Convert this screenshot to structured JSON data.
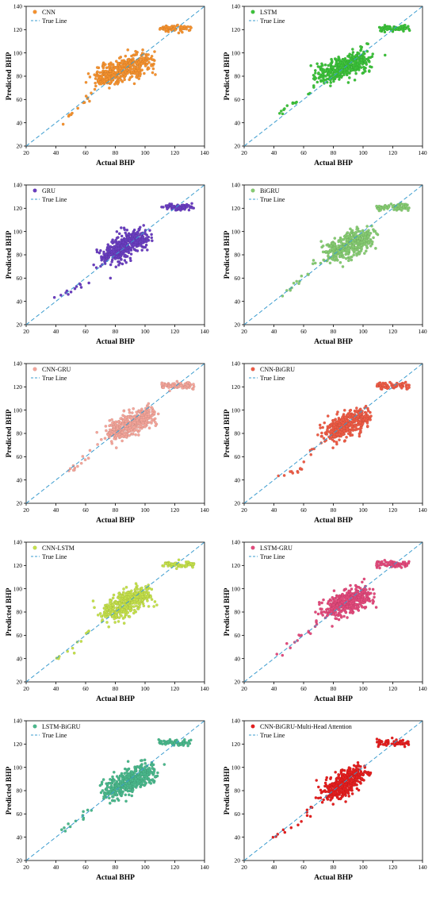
{
  "chart_data": [
    {
      "type": "scatter",
      "xlabel": "Actual BHP",
      "ylabel": "Predicted BHP",
      "xlim": [
        20,
        140
      ],
      "ylim": [
        20,
        140
      ],
      "xticks": [
        20,
        40,
        60,
        80,
        100,
        120,
        140
      ],
      "yticks": [
        20,
        40,
        60,
        80,
        100,
        120,
        140
      ],
      "grid": false,
      "legend": "top-left",
      "series": [
        {
          "name": "CNN",
          "color": "#f5922f",
          "clusters": [
            [
              45,
              40
            ],
            [
              55,
              52
            ],
            [
              63,
              62
            ],
            [
              70,
              78
            ],
            [
              85,
              85
            ],
            [
              100,
              93
            ],
            [
              120,
              121
            ]
          ]
        },
        {
          "name": "True Line",
          "line": true,
          "color": "#3b9ccf"
        }
      ]
    },
    {
      "type": "scatter",
      "xlabel": "Actual BHP",
      "ylabel": "Predicted BHP",
      "xlim": [
        20,
        140
      ],
      "ylim": [
        20,
        140
      ],
      "xticks": [
        20,
        40,
        60,
        80,
        100,
        120,
        140
      ],
      "yticks": [
        20,
        40,
        60,
        80,
        100,
        120,
        140
      ],
      "grid": false,
      "legend": "top-left",
      "series": [
        {
          "name": "LSTM",
          "color": "#3cc23a",
          "clusters": [
            [
              40,
              43
            ],
            [
              50,
              56
            ],
            [
              60,
              60
            ],
            [
              72,
              80
            ],
            [
              88,
              88
            ],
            [
              102,
              96
            ],
            [
              122,
              121
            ]
          ]
        },
        {
          "name": "True Line",
          "line": true,
          "color": "#3b9ccf"
        }
      ]
    },
    {
      "type": "scatter",
      "xlabel": "Actual BHP",
      "ylabel": "Predicted BHP",
      "xlim": [
        20,
        140
      ],
      "ylim": [
        20,
        140
      ],
      "xticks": [
        20,
        40,
        60,
        80,
        100,
        120,
        140
      ],
      "yticks": [
        20,
        40,
        60,
        80,
        100,
        120,
        140
      ],
      "grid": false,
      "legend": "top-left",
      "series": [
        {
          "name": "GRU",
          "color": "#6a3ec0",
          "clusters": [
            [
              38,
              43
            ],
            [
              52,
              50
            ],
            [
              62,
              60
            ],
            [
              75,
              78
            ],
            [
              88,
              88
            ],
            [
              98,
              97
            ],
            [
              122,
              121
            ]
          ]
        },
        {
          "name": "True Line",
          "line": true,
          "color": "#3b9ccf"
        }
      ]
    },
    {
      "type": "scatter",
      "xlabel": "Actual BHP",
      "ylabel": "Predicted BHP",
      "xlim": [
        20,
        140
      ],
      "ylim": [
        20,
        140
      ],
      "xticks": [
        20,
        40,
        60,
        80,
        100,
        120,
        140
      ],
      "yticks": [
        20,
        40,
        60,
        80,
        100,
        120,
        140
      ],
      "grid": false,
      "legend": "top-left",
      "series": [
        {
          "name": "BiGRU",
          "color": "#86cc72",
          "clusters": [
            [
              42,
              42
            ],
            [
              55,
              55
            ],
            [
              65,
              67
            ],
            [
              78,
              80
            ],
            [
              90,
              90
            ],
            [
              103,
              96
            ],
            [
              120,
              121
            ]
          ]
        },
        {
          "name": "True Line",
          "line": true,
          "color": "#3b9ccf"
        }
      ]
    },
    {
      "type": "scatter",
      "xlabel": "Actual BHP",
      "ylabel": "Predicted BHP",
      "xlim": [
        20,
        140
      ],
      "ylim": [
        20,
        140
      ],
      "xticks": [
        20,
        40,
        60,
        80,
        100,
        120,
        140
      ],
      "yticks": [
        20,
        40,
        60,
        80,
        100,
        120,
        140
      ],
      "grid": false,
      "legend": "top-left",
      "series": [
        {
          "name": "CNN-GRU",
          "color": "#f4a59a",
          "clusters": [
            [
              40,
              41
            ],
            [
              55,
              52
            ],
            [
              65,
              68
            ],
            [
              78,
              80
            ],
            [
              90,
              88
            ],
            [
              103,
              97
            ],
            [
              122,
              121
            ]
          ]
        },
        {
          "name": "True Line",
          "line": true,
          "color": "#3b9ccf"
        }
      ]
    },
    {
      "type": "scatter",
      "xlabel": "Actual BHP",
      "ylabel": "Predicted BHP",
      "xlim": [
        20,
        140
      ],
      "ylim": [
        20,
        140
      ],
      "xticks": [
        20,
        40,
        60,
        80,
        100,
        120,
        140
      ],
      "yticks": [
        20,
        40,
        60,
        80,
        100,
        120,
        140
      ],
      "grid": false,
      "legend": "top-left",
      "series": [
        {
          "name": "CNN-BiGRU",
          "color": "#ee5b45",
          "clusters": [
            [
              42,
              42
            ],
            [
              55,
              48
            ],
            [
              65,
              63
            ],
            [
              78,
              80
            ],
            [
              90,
              90
            ],
            [
              100,
              95
            ],
            [
              120,
              121
            ]
          ]
        },
        {
          "name": "True Line",
          "line": true,
          "color": "#3b9ccf"
        }
      ]
    },
    {
      "type": "scatter",
      "xlabel": "Actual BHP",
      "ylabel": "Predicted BHP",
      "xlim": [
        20,
        140
      ],
      "ylim": [
        20,
        140
      ],
      "xticks": [
        20,
        40,
        60,
        80,
        100,
        120,
        140
      ],
      "yticks": [
        20,
        40,
        60,
        80,
        100,
        120,
        140
      ],
      "grid": false,
      "legend": "top-left",
      "series": [
        {
          "name": "CNN-LSTM",
          "color": "#c4e04b",
          "clusters": [
            [
              40,
              41
            ],
            [
              52,
              48
            ],
            [
              63,
              65
            ],
            [
              76,
              80
            ],
            [
              88,
              88
            ],
            [
              100,
              96
            ],
            [
              122,
              121
            ]
          ]
        },
        {
          "name": "True Line",
          "line": true,
          "color": "#3b9ccf"
        }
      ]
    },
    {
      "type": "scatter",
      "xlabel": "Actual BHP",
      "ylabel": "Predicted BHP",
      "xlim": [
        20,
        140
      ],
      "ylim": [
        20,
        140
      ],
      "xticks": [
        20,
        40,
        60,
        80,
        100,
        120,
        140
      ],
      "yticks": [
        20,
        40,
        60,
        80,
        100,
        120,
        140
      ],
      "grid": false,
      "legend": "top-left",
      "series": [
        {
          "name": "LSTM-GRU",
          "color": "#e34a7c",
          "clusters": [
            [
              40,
              41
            ],
            [
              55,
              55
            ],
            [
              65,
              65
            ],
            [
              78,
              82
            ],
            [
              90,
              88
            ],
            [
              102,
              96
            ],
            [
              120,
              121
            ]
          ]
        },
        {
          "name": "True Line",
          "line": true,
          "color": "#3b9ccf"
        }
      ]
    },
    {
      "type": "scatter",
      "xlabel": "Actual BHP",
      "ylabel": "Predicted BHP",
      "xlim": [
        20,
        140
      ],
      "ylim": [
        20,
        140
      ],
      "xticks": [
        20,
        40,
        60,
        80,
        100,
        120,
        140
      ],
      "yticks": [
        20,
        40,
        60,
        80,
        100,
        120,
        140
      ],
      "grid": false,
      "legend": "top-left",
      "series": [
        {
          "name": "LSTM-BiGRU",
          "color": "#4ab88c",
          "clusters": [
            [
              40,
              44
            ],
            [
              55,
              55
            ],
            [
              65,
              65
            ],
            [
              77,
              80
            ],
            [
              90,
              88
            ],
            [
              102,
              97
            ],
            [
              120,
              121
            ]
          ]
        },
        {
          "name": "True Line",
          "line": true,
          "color": "#3b9ccf"
        }
      ]
    },
    {
      "type": "scatter",
      "xlabel": "Actual BHP",
      "ylabel": "Predicted BHP",
      "xlim": [
        20,
        140
      ],
      "ylim": [
        20,
        140
      ],
      "xticks": [
        20,
        40,
        60,
        80,
        100,
        120,
        140
      ],
      "yticks": [
        20,
        40,
        60,
        80,
        100,
        120,
        140
      ],
      "grid": false,
      "legend": "top-left",
      "series": [
        {
          "name": "CNN-BiGRU-Multi-Head Attention",
          "color": "#e51f1f",
          "clusters": [
            [
              40,
              41
            ],
            [
              55,
              50
            ],
            [
              65,
              65
            ],
            [
              78,
              78
            ],
            [
              88,
              86
            ],
            [
              98,
              96
            ],
            [
              120,
              121
            ]
          ]
        },
        {
          "name": "True Line",
          "line": true,
          "color": "#3b9ccf"
        }
      ]
    }
  ]
}
